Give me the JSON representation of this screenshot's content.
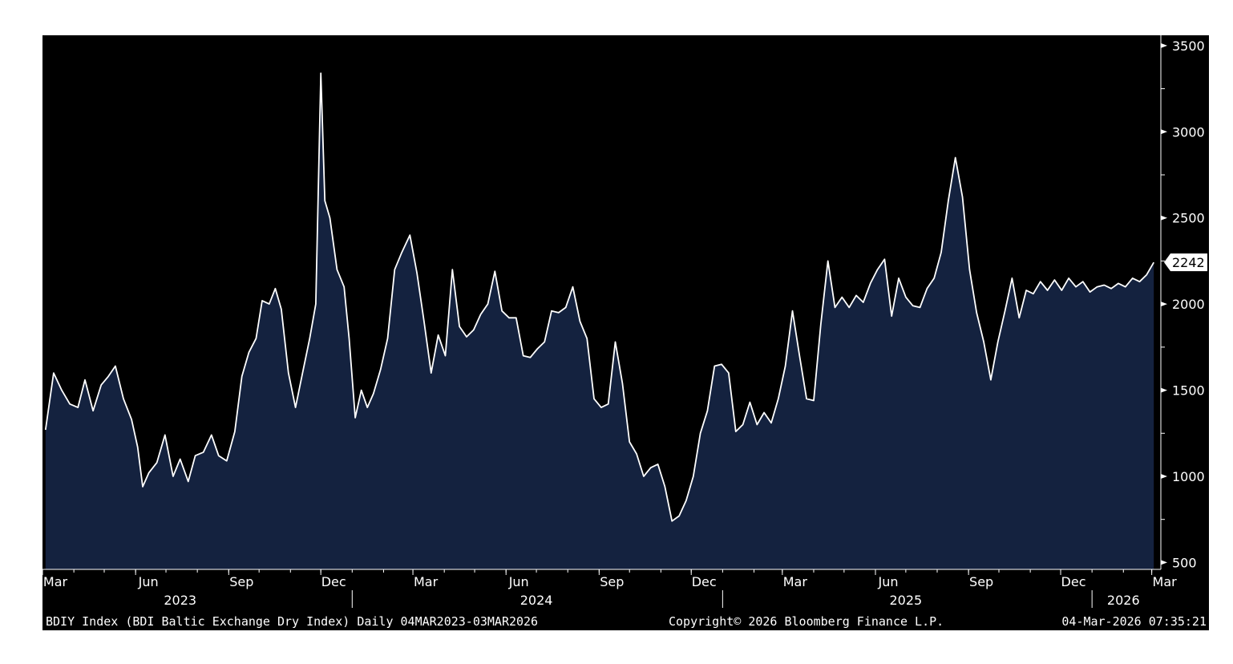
{
  "colors": {
    "background": "#000000",
    "area_fill": "#14223f",
    "line": "#ffffff",
    "text": "#ffffff"
  },
  "chart_data": {
    "type": "area",
    "y_axis_position": "right",
    "ylim": [
      460,
      3560
    ],
    "y_ticks": [
      500,
      1000,
      1500,
      2000,
      2500,
      3000,
      3500
    ],
    "x_range": [
      "2023-03-04",
      "2026-03-03"
    ],
    "x_month_ticks": [
      {
        "date": "2023-03-01",
        "label": "Mar"
      },
      {
        "date": "2023-06-01",
        "label": "Jun"
      },
      {
        "date": "2023-09-01",
        "label": "Sep"
      },
      {
        "date": "2023-12-01",
        "label": "Dec"
      },
      {
        "date": "2024-03-01",
        "label": "Mar"
      },
      {
        "date": "2024-06-01",
        "label": "Jun"
      },
      {
        "date": "2024-09-01",
        "label": "Sep"
      },
      {
        "date": "2024-12-01",
        "label": "Dec"
      },
      {
        "date": "2025-03-01",
        "label": "Mar"
      },
      {
        "date": "2025-06-01",
        "label": "Jun"
      },
      {
        "date": "2025-09-01",
        "label": "Sep"
      },
      {
        "date": "2025-12-01",
        "label": "Dec"
      },
      {
        "date": "2026-03-01",
        "label": "Mar"
      }
    ],
    "x_year_labels": [
      {
        "date": "2023-07-15",
        "label": "2023"
      },
      {
        "date": "2024-07-01",
        "label": "2024"
      },
      {
        "date": "2025-07-01",
        "label": "2025"
      },
      {
        "date": "2026-02-01",
        "label": "2026"
      }
    ],
    "x_year_separators": [
      "2024-01-01",
      "2025-01-01",
      "2026-01-01"
    ],
    "last_value": 2242,
    "last_value_label": "2242",
    "series": [
      {
        "values": [
          [
            "2023-03-04",
            1270
          ],
          [
            "2023-03-12",
            1600
          ],
          [
            "2023-03-20",
            1500
          ],
          [
            "2023-03-28",
            1420
          ],
          [
            "2023-04-05",
            1400
          ],
          [
            "2023-04-12",
            1560
          ],
          [
            "2023-04-20",
            1380
          ],
          [
            "2023-04-28",
            1530
          ],
          [
            "2023-05-05",
            1580
          ],
          [
            "2023-05-12",
            1640
          ],
          [
            "2023-05-20",
            1450
          ],
          [
            "2023-05-28",
            1330
          ],
          [
            "2023-06-03",
            1170
          ],
          [
            "2023-06-08",
            940
          ],
          [
            "2023-06-14",
            1020
          ],
          [
            "2023-06-22",
            1080
          ],
          [
            "2023-06-30",
            1240
          ],
          [
            "2023-07-08",
            1000
          ],
          [
            "2023-07-15",
            1100
          ],
          [
            "2023-07-23",
            970
          ],
          [
            "2023-07-30",
            1120
          ],
          [
            "2023-08-07",
            1140
          ],
          [
            "2023-08-15",
            1240
          ],
          [
            "2023-08-22",
            1120
          ],
          [
            "2023-08-30",
            1090
          ],
          [
            "2023-09-07",
            1260
          ],
          [
            "2023-09-14",
            1580
          ],
          [
            "2023-09-21",
            1720
          ],
          [
            "2023-09-28",
            1800
          ],
          [
            "2023-10-04",
            2020
          ],
          [
            "2023-10-11",
            2000
          ],
          [
            "2023-10-17",
            2090
          ],
          [
            "2023-10-23",
            1970
          ],
          [
            "2023-10-30",
            1600
          ],
          [
            "2023-11-06",
            1400
          ],
          [
            "2023-11-13",
            1600
          ],
          [
            "2023-11-20",
            1800
          ],
          [
            "2023-11-26",
            2000
          ],
          [
            "2023-12-01",
            3340
          ],
          [
            "2023-12-05",
            2600
          ],
          [
            "2023-12-10",
            2500
          ],
          [
            "2023-12-17",
            2200
          ],
          [
            "2023-12-24",
            2100
          ],
          [
            "2023-12-29",
            1800
          ],
          [
            "2024-01-04",
            1340
          ],
          [
            "2024-01-10",
            1500
          ],
          [
            "2024-01-16",
            1400
          ],
          [
            "2024-01-22",
            1480
          ],
          [
            "2024-01-29",
            1620
          ],
          [
            "2024-02-05",
            1800
          ],
          [
            "2024-02-12",
            2200
          ],
          [
            "2024-02-19",
            2300
          ],
          [
            "2024-02-27",
            2400
          ],
          [
            "2024-03-05",
            2180
          ],
          [
            "2024-03-12",
            1900
          ],
          [
            "2024-03-19",
            1600
          ],
          [
            "2024-03-26",
            1820
          ],
          [
            "2024-04-02",
            1700
          ],
          [
            "2024-04-09",
            2200
          ],
          [
            "2024-04-16",
            1870
          ],
          [
            "2024-04-23",
            1810
          ],
          [
            "2024-04-30",
            1850
          ],
          [
            "2024-05-07",
            1940
          ],
          [
            "2024-05-14",
            2000
          ],
          [
            "2024-05-21",
            2190
          ],
          [
            "2024-05-28",
            1960
          ],
          [
            "2024-06-04",
            1920
          ],
          [
            "2024-06-11",
            1920
          ],
          [
            "2024-06-18",
            1700
          ],
          [
            "2024-06-25",
            1690
          ],
          [
            "2024-07-02",
            1740
          ],
          [
            "2024-07-09",
            1780
          ],
          [
            "2024-07-16",
            1960
          ],
          [
            "2024-07-23",
            1950
          ],
          [
            "2024-07-30",
            1980
          ],
          [
            "2024-08-06",
            2100
          ],
          [
            "2024-08-13",
            1900
          ],
          [
            "2024-08-20",
            1800
          ],
          [
            "2024-08-27",
            1450
          ],
          [
            "2024-09-03",
            1400
          ],
          [
            "2024-09-10",
            1420
          ],
          [
            "2024-09-17",
            1780
          ],
          [
            "2024-09-24",
            1540
          ],
          [
            "2024-10-01",
            1200
          ],
          [
            "2024-10-08",
            1130
          ],
          [
            "2024-10-15",
            1000
          ],
          [
            "2024-10-22",
            1050
          ],
          [
            "2024-10-29",
            1070
          ],
          [
            "2024-11-05",
            940
          ],
          [
            "2024-11-12",
            740
          ],
          [
            "2024-11-19",
            770
          ],
          [
            "2024-11-26",
            860
          ],
          [
            "2024-12-03",
            1000
          ],
          [
            "2024-12-10",
            1250
          ],
          [
            "2024-12-17",
            1380
          ],
          [
            "2024-12-24",
            1640
          ],
          [
            "2024-12-31",
            1650
          ],
          [
            "2025-01-07",
            1600
          ],
          [
            "2025-01-14",
            1260
          ],
          [
            "2025-01-21",
            1300
          ],
          [
            "2025-01-28",
            1430
          ],
          [
            "2025-02-04",
            1300
          ],
          [
            "2025-02-11",
            1370
          ],
          [
            "2025-02-18",
            1310
          ],
          [
            "2025-02-25",
            1450
          ],
          [
            "2025-03-04",
            1640
          ],
          [
            "2025-03-11",
            1960
          ],
          [
            "2025-03-18",
            1700
          ],
          [
            "2025-03-25",
            1450
          ],
          [
            "2025-04-01",
            1440
          ],
          [
            "2025-04-08",
            1880
          ],
          [
            "2025-04-15",
            2250
          ],
          [
            "2025-04-22",
            1980
          ],
          [
            "2025-04-29",
            2040
          ],
          [
            "2025-05-06",
            1980
          ],
          [
            "2025-05-13",
            2050
          ],
          [
            "2025-05-20",
            2010
          ],
          [
            "2025-05-27",
            2120
          ],
          [
            "2025-06-03",
            2200
          ],
          [
            "2025-06-10",
            2260
          ],
          [
            "2025-06-17",
            1930
          ],
          [
            "2025-06-24",
            2150
          ],
          [
            "2025-07-01",
            2040
          ],
          [
            "2025-07-08",
            1990
          ],
          [
            "2025-07-15",
            1980
          ],
          [
            "2025-07-22",
            2090
          ],
          [
            "2025-07-29",
            2150
          ],
          [
            "2025-08-05",
            2300
          ],
          [
            "2025-08-12",
            2600
          ],
          [
            "2025-08-19",
            2850
          ],
          [
            "2025-08-26",
            2620
          ],
          [
            "2025-09-02",
            2200
          ],
          [
            "2025-09-09",
            1950
          ],
          [
            "2025-09-16",
            1780
          ],
          [
            "2025-09-23",
            1560
          ],
          [
            "2025-09-30",
            1780
          ],
          [
            "2025-10-07",
            1960
          ],
          [
            "2025-10-14",
            2150
          ],
          [
            "2025-10-21",
            1920
          ],
          [
            "2025-10-28",
            2080
          ],
          [
            "2025-11-04",
            2060
          ],
          [
            "2025-11-11",
            2130
          ],
          [
            "2025-11-18",
            2080
          ],
          [
            "2025-11-25",
            2140
          ],
          [
            "2025-12-02",
            2080
          ],
          [
            "2025-12-09",
            2150
          ],
          [
            "2025-12-16",
            2100
          ],
          [
            "2025-12-23",
            2130
          ],
          [
            "2025-12-30",
            2070
          ],
          [
            "2026-01-06",
            2100
          ],
          [
            "2026-01-13",
            2110
          ],
          [
            "2026-01-20",
            2090
          ],
          [
            "2026-01-27",
            2120
          ],
          [
            "2026-02-03",
            2100
          ],
          [
            "2026-02-10",
            2150
          ],
          [
            "2026-02-17",
            2130
          ],
          [
            "2026-02-24",
            2170
          ],
          [
            "2026-03-03",
            2242
          ]
        ]
      }
    ]
  },
  "footer": {
    "series_info": "BDIY Index (BDI Baltic Exchange Dry Index) Daily 04MAR2023-03MAR2026",
    "copyright": "Copyright© 2026 Bloomberg Finance L.P.",
    "timestamp": "04-Mar-2026 07:35:21"
  }
}
